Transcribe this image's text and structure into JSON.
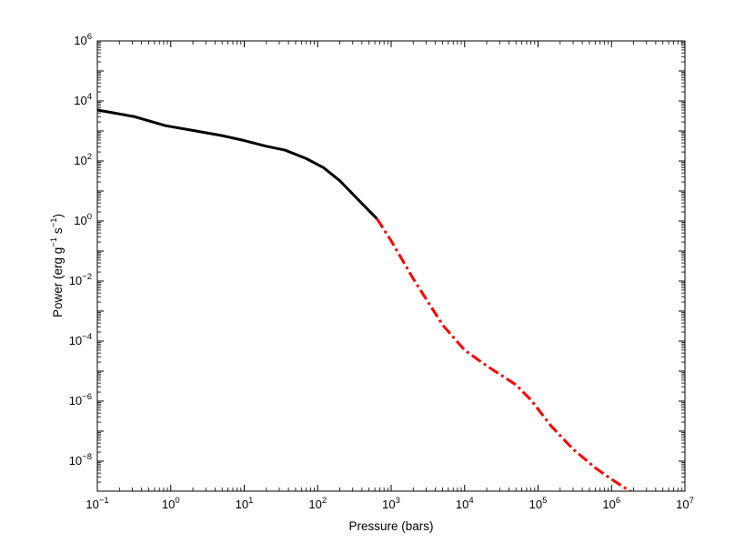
{
  "chart_data": {
    "type": "line",
    "title": "",
    "xlabel": "Pressure (bars)",
    "ylabel": {
      "parts": [
        "Power (erg g",
        "−1",
        " s",
        "−1",
        ")"
      ]
    },
    "x_scale": "log",
    "y_scale": "log",
    "xlim": [
      0.1,
      10000000
    ],
    "ylim": [
      1e-09,
      1000000
    ],
    "grid": false,
    "legend": "none",
    "x_ticks": [
      {
        "base": "10",
        "exp": "−1",
        "value": 0.1
      },
      {
        "base": "10",
        "exp": "0",
        "value": 1
      },
      {
        "base": "10",
        "exp": "1",
        "value": 10
      },
      {
        "base": "10",
        "exp": "2",
        "value": 100
      },
      {
        "base": "10",
        "exp": "3",
        "value": 1000
      },
      {
        "base": "10",
        "exp": "4",
        "value": 10000
      },
      {
        "base": "10",
        "exp": "5",
        "value": 100000
      },
      {
        "base": "10",
        "exp": "6",
        "value": 1000000
      },
      {
        "base": "10",
        "exp": "7",
        "value": 10000000
      }
    ],
    "y_ticks": [
      {
        "base": "10",
        "exp": "−8",
        "value": 1e-08
      },
      {
        "base": "10",
        "exp": "−6",
        "value": 1e-06
      },
      {
        "base": "10",
        "exp": "−4",
        "value": 0.0001
      },
      {
        "base": "10",
        "exp": "−2",
        "value": 0.01
      },
      {
        "base": "10",
        "exp": "0",
        "value": 1
      },
      {
        "base": "10",
        "exp": "2",
        "value": 100
      },
      {
        "base": "10",
        "exp": "4",
        "value": 10000
      },
      {
        "base": "10",
        "exp": "6",
        "value": 1000000
      }
    ],
    "series": [
      {
        "style": "solid",
        "color": "#000000",
        "x": [
          0.1,
          0.32,
          0.85,
          2.2,
          5.0,
          10,
          20,
          36,
          70,
          120,
          200,
          360,
          640
        ],
        "y": [
          5000,
          3000,
          1500,
          1000,
          700,
          480,
          310,
          230,
          120,
          60,
          22,
          5,
          1.2
        ]
      },
      {
        "style": "dash-dot",
        "color": "#ff0000",
        "x": [
          640,
          1000,
          2000,
          5000,
          10000,
          20000,
          50000,
          80000,
          150000,
          300000,
          600000,
          1000000,
          1900000
        ],
        "y": [
          1.2,
          0.22,
          0.012,
          0.00035,
          5e-05,
          1.5e-05,
          3.5e-06,
          1.1e-06,
          1.5e-07,
          2.5e-08,
          6e-09,
          2.5e-09,
          9e-10
        ]
      }
    ]
  }
}
